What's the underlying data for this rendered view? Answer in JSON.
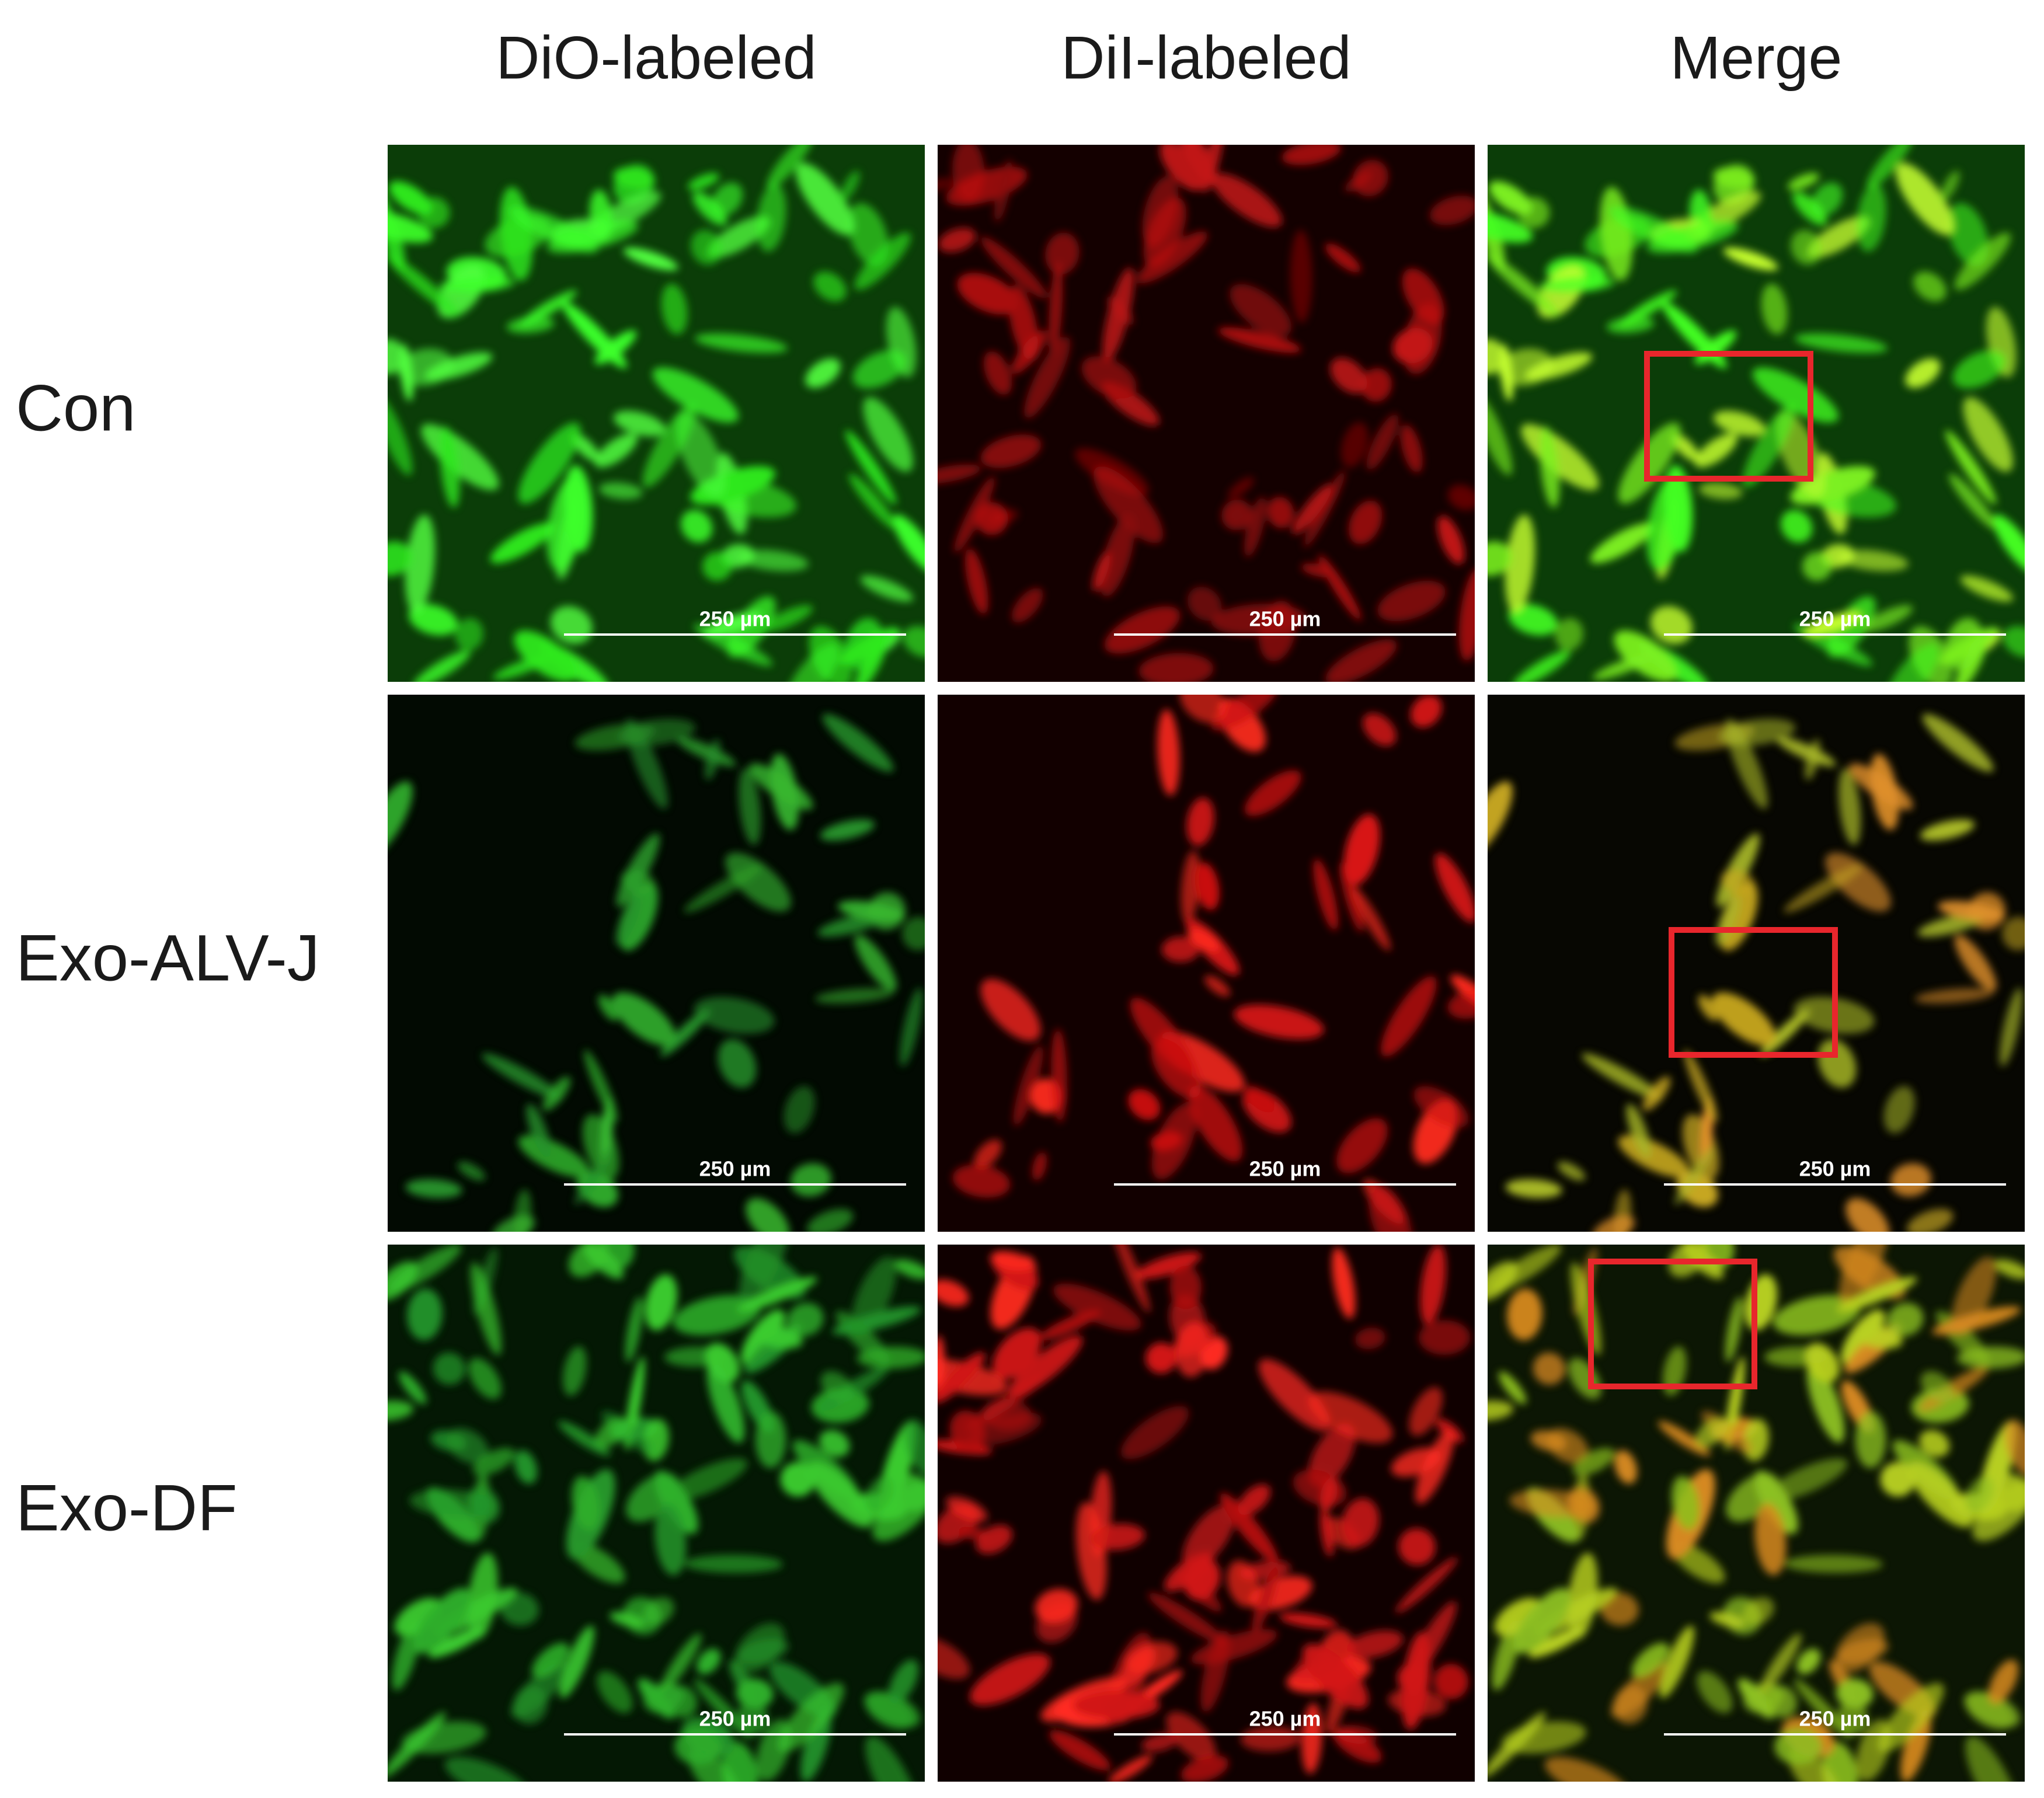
{
  "columns": [
    "DiO-labeled",
    "DiI-labeled",
    "Merge"
  ],
  "rows": [
    {
      "label": "Con",
      "scale_bars": [
        "250 µm",
        "250 µm",
        "250 µm"
      ]
    },
    {
      "label": "Exo-ALV-J",
      "scale_bars": [
        "250 µm",
        "250 µm",
        "250 µm"
      ]
    },
    {
      "label": "Exo-DF",
      "scale_bars": [
        "250 µm",
        "250 µm",
        "250 µm"
      ]
    }
  ]
}
